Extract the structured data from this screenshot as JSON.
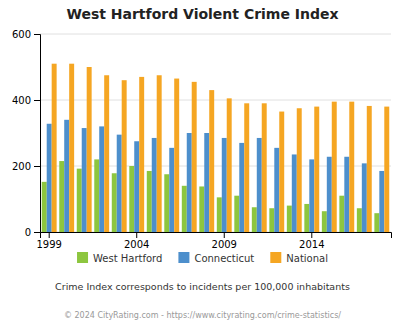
{
  "chart_data": {
    "type": "bar",
    "title": "West Hartford Violent Crime Index",
    "subtitle": "Crime Index corresponds to incidents per 100,000 inhabitants",
    "annotations": [
      "© 2024 CityRating.com - https://www.cityrating.com/crime-statistics/"
    ],
    "categories": [
      "1999",
      null,
      null,
      null,
      null,
      "2004",
      null,
      null,
      null,
      null,
      "2009",
      null,
      null,
      null,
      null,
      "2014",
      null,
      null,
      null,
      null
    ],
    "series": [
      {
        "name": "West Hartford",
        "color": "#8dc63f",
        "values": [
          152,
          215,
          192,
          220,
          178,
          200,
          185,
          175,
          140,
          138,
          105,
          110,
          75,
          72,
          80,
          85,
          63,
          110,
          72,
          57
        ]
      },
      {
        "name": "Connecticut",
        "color": "#4d8fcc",
        "values": [
          328,
          340,
          315,
          320,
          295,
          275,
          285,
          255,
          300,
          300,
          285,
          270,
          285,
          255,
          235,
          220,
          228,
          228,
          208,
          185
        ]
      },
      {
        "name": "National",
        "color": "#f5a623",
        "values": [
          510,
          510,
          500,
          475,
          460,
          470,
          475,
          465,
          455,
          430,
          405,
          390,
          390,
          365,
          375,
          380,
          395,
          395,
          382,
          380
        ]
      }
    ],
    "ylim": [
      0,
      600
    ],
    "yticks": [
      0,
      200,
      400,
      600
    ],
    "grid": true,
    "legend": "bottom"
  }
}
